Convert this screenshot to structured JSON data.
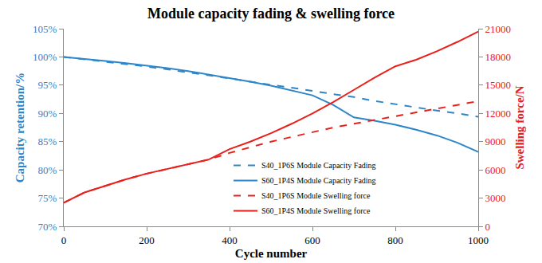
{
  "chart_data": {
    "type": "line",
    "title": "Module capacity fading & swelling force",
    "x_label": "Cycle number",
    "y_label": "Capacity retention/%",
    "y2_label": "Swelling force/N",
    "x": [
      0,
      50,
      100,
      150,
      200,
      250,
      300,
      350,
      400,
      450,
      500,
      550,
      600,
      650,
      700,
      750,
      800,
      850,
      900,
      950,
      1000
    ],
    "series": [
      {
        "name": "S40_1P6S Module Capacity Fading",
        "color": "#2e86c9",
        "line_style": "dash",
        "axis": "y",
        "values": [
          100,
          99.6,
          99.2,
          98.8,
          98.3,
          97.8,
          97.3,
          96.8,
          96.2,
          95.6,
          95.1,
          94.6,
          94.0,
          93.4,
          92.9,
          92.2,
          91.6,
          91.1,
          90.5,
          90.0,
          89.4
        ]
      },
      {
        "name": "S60_1P4S Module Capacity Fading",
        "color": "#2e86c9",
        "line_style": "solid",
        "axis": "y",
        "values": [
          100,
          99.7,
          99.3,
          98.9,
          98.5,
          98.0,
          97.5,
          96.9,
          96.3,
          95.6,
          94.9,
          94.1,
          93.2,
          91.5,
          89.3,
          88.7,
          88.0,
          87.1,
          86.1,
          84.8,
          83.2
        ]
      },
      {
        "name": "S40_1P6S Module Swelling force",
        "color": "#e8201c",
        "line_style": "dash",
        "axis": "y2",
        "values": [
          2500,
          3600,
          4300,
          5000,
          5600,
          6100,
          6600,
          7100,
          7800,
          8400,
          9000,
          9500,
          10000,
          10500,
          10900,
          11300,
          11700,
          12100,
          12500,
          12900,
          13300
        ]
      },
      {
        "name": "S60_1P4S Module Swelling force",
        "color": "#e8201c",
        "line_style": "solid",
        "axis": "y2",
        "values": [
          2500,
          3600,
          4300,
          5000,
          5600,
          6100,
          6600,
          7100,
          8200,
          9000,
          9900,
          10900,
          12000,
          13200,
          14500,
          15800,
          17000,
          17700,
          18600,
          19600,
          20700
        ]
      }
    ],
    "xlim": [
      0,
      1000
    ],
    "xticks": [
      0,
      200,
      400,
      600,
      800,
      1000
    ],
    "ylim": [
      70,
      105
    ],
    "yticks": [
      {
        "value": 70,
        "label": "70%"
      },
      {
        "value": 75,
        "label": "75%"
      },
      {
        "value": 80,
        "label": "80%"
      },
      {
        "value": 85,
        "label": "85%"
      },
      {
        "value": 90,
        "label": "90%"
      },
      {
        "value": 95,
        "label": "95%"
      },
      {
        "value": 100,
        "label": "100%"
      },
      {
        "value": 105,
        "label": "105%"
      }
    ],
    "y2lim": [
      0,
      21000
    ],
    "y2ticks": [
      0,
      3000,
      6000,
      9000,
      12000,
      15000,
      18000,
      21000
    ],
    "grid": false,
    "legend": "bottom"
  }
}
